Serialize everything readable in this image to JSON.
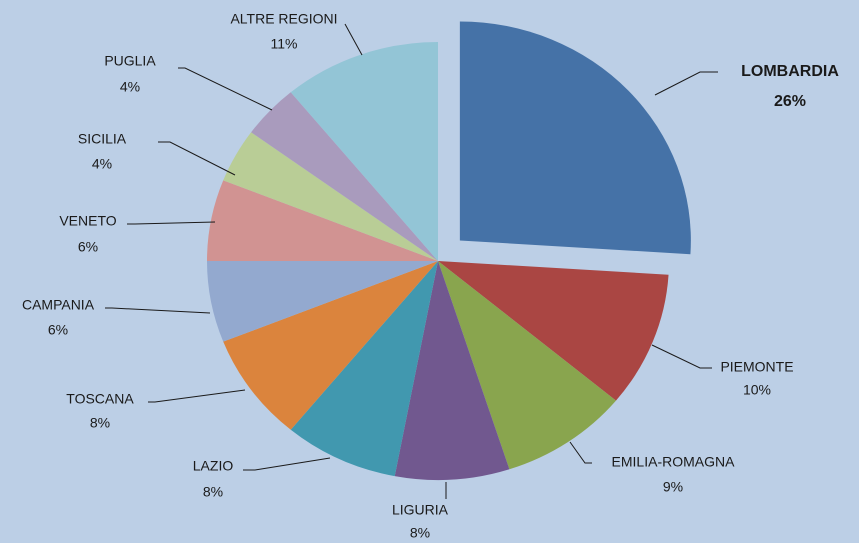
{
  "chart_data": {
    "type": "pie",
    "categories": [
      "LOMBARDIA",
      "PIEMONTE",
      "EMILIA-ROMAGNA",
      "LIGURIA",
      "LAZIO",
      "TOSCANA",
      "CAMPANIA",
      "VENETO",
      "SICILIA",
      "PUGLIA",
      "ALTRE REGIONI"
    ],
    "values": [
      26,
      10,
      9,
      8,
      8,
      8,
      6,
      6,
      4,
      4,
      11
    ],
    "value_labels": [
      "26%",
      "10%",
      "9%",
      "8%",
      "8%",
      "8%",
      "6%",
      "6%",
      "4%",
      "4%",
      "11%"
    ],
    "colors": [
      "#4572a7",
      "#aa4643",
      "#89a54e",
      "#71588f",
      "#4198af",
      "#db843d",
      "#93a9cf",
      "#d19392",
      "#b9cd96",
      "#a99bbd",
      "#93c5d6"
    ]
  }
}
